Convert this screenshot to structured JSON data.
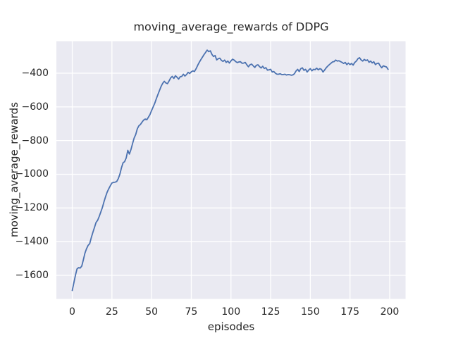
{
  "figure": {
    "title": "moving_average_rewards of DDPG",
    "xlabel": "episodes",
    "ylabel": "moving_average_rewards"
  },
  "colors": {
    "line": "#4C72B0",
    "plot_background": "#EAEAF2",
    "grid": "#FFFFFF",
    "text": "#262626",
    "figure_background": "#FFFFFF"
  },
  "chart_data": {
    "type": "line",
    "title": "moving_average_rewards of DDPG",
    "xlabel": "episodes",
    "ylabel": "moving_average_rewards",
    "xlim": [
      -10,
      210
    ],
    "ylim": [
      -1740,
      -210
    ],
    "xticks": [
      0,
      25,
      50,
      75,
      100,
      125,
      150,
      175,
      200
    ],
    "yticks": [
      -400,
      -600,
      -800,
      -1000,
      -1200,
      -1400,
      -1600
    ],
    "grid": true,
    "legend": false,
    "series": [
      {
        "name": "moving_average_rewards",
        "color": "#4C72B0",
        "x_is_index": true,
        "values": [
          -1690,
          -1645,
          -1600,
          -1562,
          -1554,
          -1557,
          -1545,
          -1508,
          -1468,
          -1442,
          -1422,
          -1412,
          -1376,
          -1345,
          -1316,
          -1286,
          -1273,
          -1250,
          -1224,
          -1197,
          -1163,
          -1133,
          -1106,
          -1086,
          -1068,
          -1052,
          -1048,
          -1047,
          -1043,
          -1026,
          -1000,
          -962,
          -932,
          -925,
          -903,
          -858,
          -880,
          -853,
          -818,
          -785,
          -764,
          -730,
          -712,
          -704,
          -690,
          -678,
          -672,
          -676,
          -661,
          -645,
          -621,
          -600,
          -578,
          -551,
          -526,
          -502,
          -478,
          -460,
          -448,
          -458,
          -462,
          -446,
          -428,
          -419,
          -431,
          -415,
          -424,
          -435,
          -421,
          -419,
          -406,
          -417,
          -408,
          -395,
          -402,
          -392,
          -386,
          -390,
          -374,
          -354,
          -336,
          -320,
          -305,
          -290,
          -277,
          -263,
          -272,
          -267,
          -288,
          -301,
          -295,
          -321,
          -314,
          -311,
          -324,
          -330,
          -322,
          -336,
          -328,
          -340,
          -327,
          -317,
          -322,
          -331,
          -337,
          -333,
          -332,
          -341,
          -340,
          -336,
          -350,
          -362,
          -350,
          -346,
          -356,
          -366,
          -353,
          -350,
          -361,
          -369,
          -359,
          -372,
          -367,
          -382,
          -380,
          -377,
          -393,
          -390,
          -400,
          -406,
          -406,
          -403,
          -408,
          -408,
          -406,
          -411,
          -408,
          -409,
          -412,
          -410,
          -403,
          -387,
          -377,
          -390,
          -373,
          -368,
          -383,
          -377,
          -393,
          -381,
          -373,
          -386,
          -377,
          -379,
          -370,
          -380,
          -373,
          -377,
          -393,
          -381,
          -368,
          -358,
          -349,
          -341,
          -333,
          -331,
          -322,
          -328,
          -326,
          -331,
          -336,
          -342,
          -336,
          -349,
          -340,
          -349,
          -342,
          -352,
          -336,
          -328,
          -314,
          -308,
          -321,
          -328,
          -318,
          -325,
          -321,
          -335,
          -328,
          -339,
          -332,
          -349,
          -342,
          -340,
          -356,
          -368,
          -356,
          -360,
          -363,
          -377
        ]
      }
    ]
  }
}
